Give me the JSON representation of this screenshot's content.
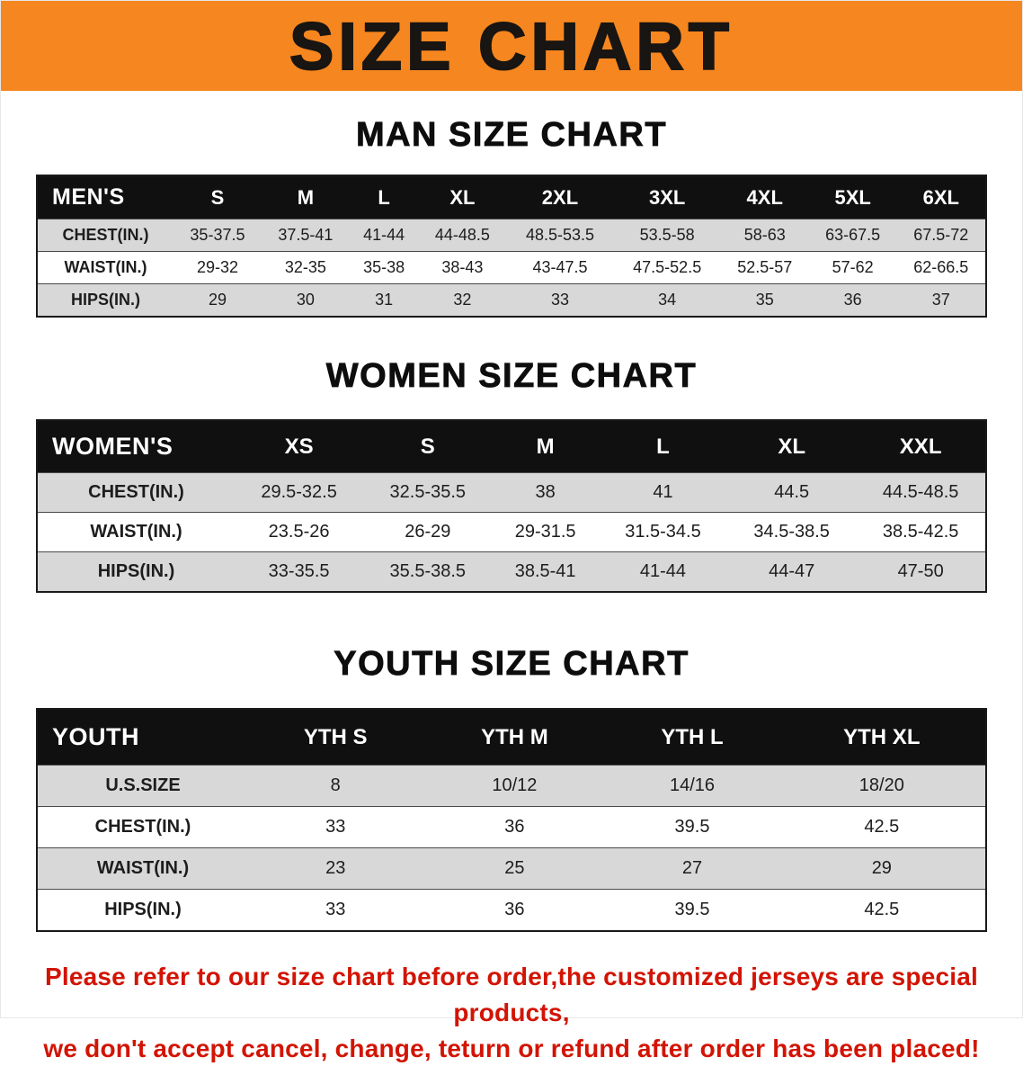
{
  "banner": {
    "title": "SIZE CHART"
  },
  "sections": {
    "men": {
      "heading": "MAN SIZE CHART",
      "table": {
        "header": [
          "MEN'S",
          "S",
          "M",
          "L",
          "XL",
          "2XL",
          "3XL",
          "4XL",
          "5XL",
          "6XL"
        ],
        "rows": [
          [
            "CHEST(IN.)",
            "35-37.5",
            "37.5-41",
            "41-44",
            "44-48.5",
            "48.5-53.5",
            "53.5-58",
            "58-63",
            "63-67.5",
            "67.5-72"
          ],
          [
            "WAIST(IN.)",
            "29-32",
            "32-35",
            "35-38",
            "38-43",
            "43-47.5",
            "47.5-52.5",
            "52.5-57",
            "57-62",
            "62-66.5"
          ],
          [
            "HIPS(IN.)",
            "29",
            "30",
            "31",
            "32",
            "33",
            "34",
            "35",
            "36",
            "37"
          ]
        ]
      }
    },
    "women": {
      "heading": "WOMEN SIZE CHART",
      "table": {
        "header": [
          "WOMEN'S",
          "XS",
          "S",
          "M",
          "L",
          "XL",
          "XXL"
        ],
        "rows": [
          [
            "CHEST(IN.)",
            "29.5-32.5",
            "32.5-35.5",
            "38",
            "41",
            "44.5",
            "44.5-48.5"
          ],
          [
            "WAIST(IN.)",
            "23.5-26",
            "26-29",
            "29-31.5",
            "31.5-34.5",
            "34.5-38.5",
            "38.5-42.5"
          ],
          [
            "HIPS(IN.)",
            "33-35.5",
            "35.5-38.5",
            "38.5-41",
            "41-44",
            "44-47",
            "47-50"
          ]
        ]
      }
    },
    "youth": {
      "heading": "YOUTH SIZE CHART",
      "table": {
        "header": [
          "YOUTH",
          "YTH S",
          "YTH M",
          "YTH L",
          "YTH XL"
        ],
        "rows": [
          [
            "U.S.SIZE",
            "8",
            "10/12",
            "14/16",
            "18/20"
          ],
          [
            "CHEST(IN.)",
            "33",
            "36",
            "39.5",
            "42.5"
          ],
          [
            "WAIST(IN.)",
            "23",
            "25",
            "27",
            "29"
          ],
          [
            "HIPS(IN.)",
            "33",
            "36",
            "39.5",
            "42.5"
          ]
        ]
      }
    }
  },
  "disclaimer": {
    "line1": "Please refer to our size chart before order,the customized jerseys are special products,",
    "line2": "we don't accept cancel, change, teturn or refund after order has been placed!"
  },
  "colors": {
    "banner_bg": "#f6861f",
    "table_header_bg": "#101010",
    "stripe_gray": "#d8d8d8",
    "disclaimer_red": "#d21404"
  }
}
